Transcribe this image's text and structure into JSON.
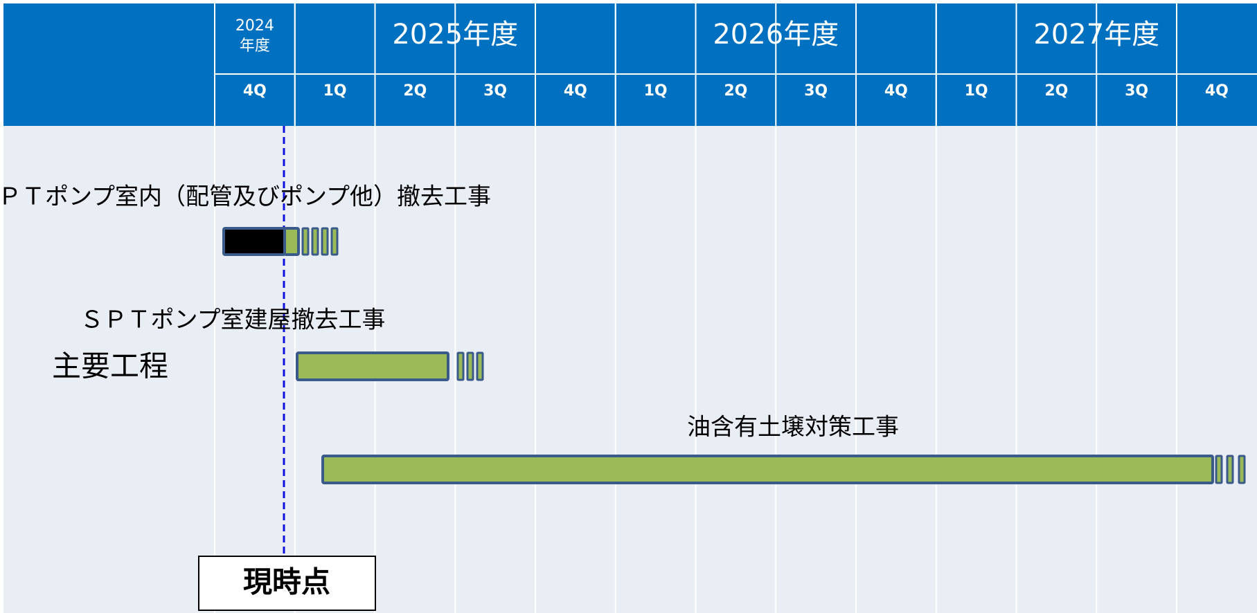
{
  "header": {
    "years": [
      {
        "label": "2024",
        "sub": "年度"
      },
      {
        "label": "2025年度"
      },
      {
        "label": "2026年度"
      },
      {
        "label": "2027年度"
      }
    ],
    "quarters": [
      "4Q",
      "1Q",
      "2Q",
      "3Q",
      "4Q",
      "1Q",
      "2Q",
      "3Q",
      "4Q",
      "1Q",
      "2Q",
      "3Q",
      "4Q"
    ]
  },
  "row_label": "主要工程",
  "tasks": [
    {
      "label": "ＳＰＴポンプ室内（配管及びポンプ他）撤去工事"
    },
    {
      "label": "ＳＰＴポンプ室建屋撤去工事"
    },
    {
      "label": "油含有土壌対策工事"
    }
  ],
  "current_label": "現時点"
}
